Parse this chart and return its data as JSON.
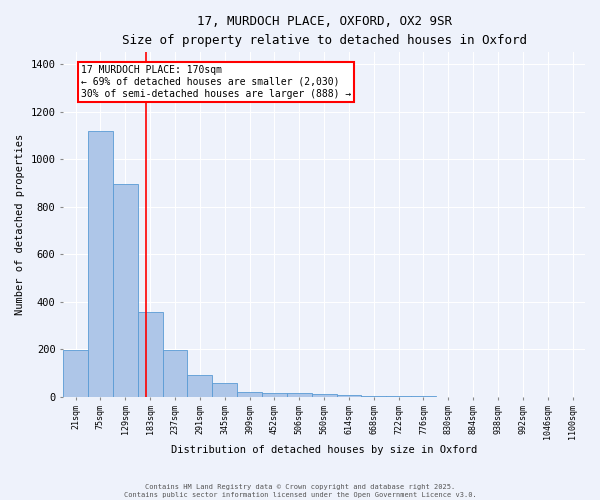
{
  "title_line1": "17, MURDOCH PLACE, OXFORD, OX2 9SR",
  "title_line2": "Size of property relative to detached houses in Oxford",
  "xlabel": "Distribution of detached houses by size in Oxford",
  "ylabel": "Number of detached properties",
  "categories": [
    "21sqm",
    "75sqm",
    "129sqm",
    "183sqm",
    "237sqm",
    "291sqm",
    "345sqm",
    "399sqm",
    "452sqm",
    "506sqm",
    "560sqm",
    "614sqm",
    "668sqm",
    "722sqm",
    "776sqm",
    "830sqm",
    "884sqm",
    "938sqm",
    "992sqm",
    "1046sqm",
    "1100sqm"
  ],
  "values": [
    195,
    1120,
    895,
    355,
    195,
    90,
    58,
    22,
    18,
    15,
    10,
    8,
    5,
    5,
    2,
    1,
    1,
    0,
    0,
    0,
    0
  ],
  "bar_color": "#aec6e8",
  "bar_edge_color": "#5a9bd5",
  "red_line_x": 2.82,
  "annotation_text": "17 MURDOCH PLACE: 170sqm\n← 69% of detached houses are smaller (2,030)\n30% of semi-detached houses are larger (888) →",
  "annotation_box_color": "white",
  "annotation_box_edge_color": "red",
  "red_line_color": "red",
  "ylim": [
    0,
    1450
  ],
  "yticks": [
    0,
    200,
    400,
    600,
    800,
    1000,
    1200,
    1400
  ],
  "footer_line1": "Contains HM Land Registry data © Crown copyright and database right 2025.",
  "footer_line2": "Contains public sector information licensed under the Open Government Licence v3.0.",
  "background_color": "#eef2fb",
  "grid_color": "white",
  "fig_width": 6.0,
  "fig_height": 5.0,
  "dpi": 100
}
